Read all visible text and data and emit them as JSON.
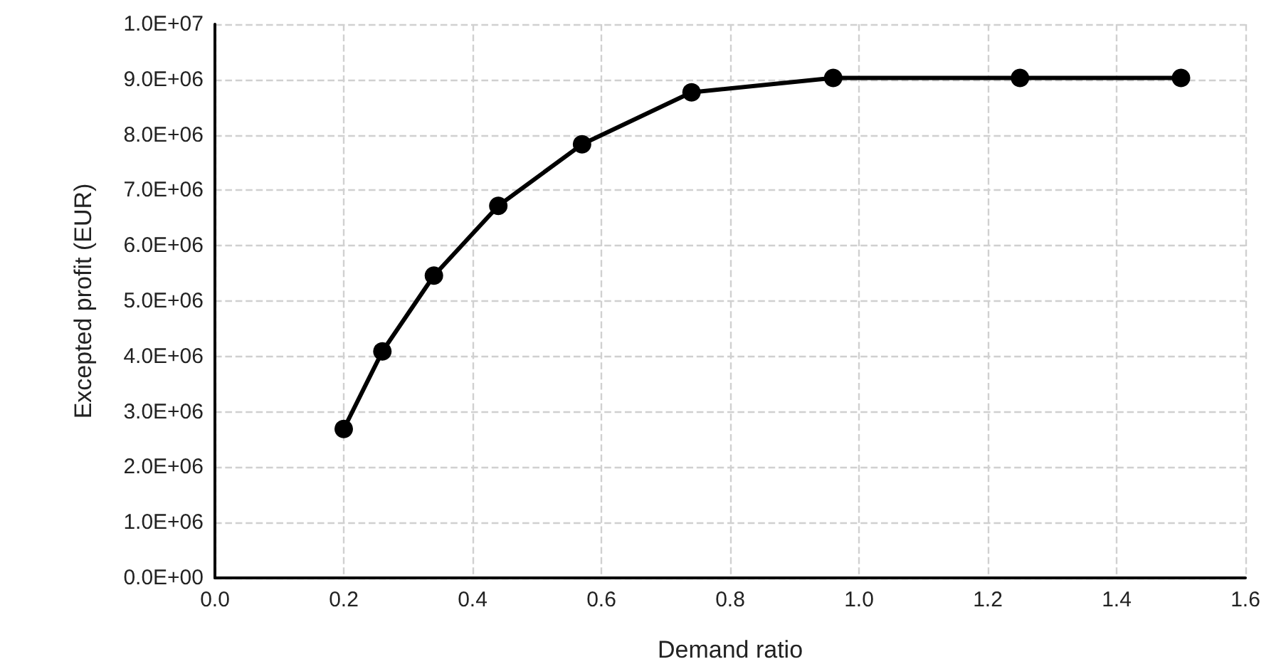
{
  "chart_data": {
    "type": "line",
    "xlabel": "Demand ratio",
    "ylabel": "Excepted profit (EUR)",
    "x": [
      0.2,
      0.26,
      0.34,
      0.44,
      0.57,
      0.74,
      0.96,
      1.25,
      1.5
    ],
    "series": [
      {
        "color": "#000000",
        "values": [
          2690000,
          4090000,
          5460000,
          6720000,
          7830000,
          8770000,
          9030000,
          9030000,
          9030000
        ]
      }
    ],
    "xlim": [
      0,
      1.6
    ],
    "xticks": [
      {
        "value": 0,
        "label": "0.0"
      },
      0.2,
      0.4,
      0.6,
      0.8,
      {
        "value": 1,
        "label": "1.0"
      },
      1.2,
      1.4,
      1.6
    ],
    "ylim": [
      0,
      10000000
    ],
    "yticks": [
      {
        "value": 0,
        "label": "0.0E+00"
      },
      {
        "value": 1000000,
        "label": "1.0E+06"
      },
      {
        "value": 2000000,
        "label": "2.0E+06"
      },
      {
        "value": 3000000,
        "label": "3.0E+06"
      },
      {
        "value": 4000000,
        "label": "4.0E+06"
      },
      {
        "value": 5000000,
        "label": "5.0E+06"
      },
      {
        "value": 6000000,
        "label": "6.0E+06"
      },
      {
        "value": 7000000,
        "label": "7.0E+06"
      },
      {
        "value": 8000000,
        "label": "8.0E+06"
      },
      {
        "value": 9000000,
        "label": "9.0E+06"
      },
      {
        "value": 10000000,
        "label": "1.0E+07"
      }
    ],
    "grid": true,
    "marker": "circle",
    "line_style": "solid"
  }
}
